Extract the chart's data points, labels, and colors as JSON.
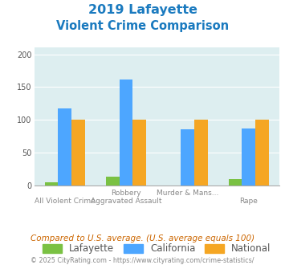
{
  "title_line1": "2019 Lafayette",
  "title_line2": "Violent Crime Comparison",
  "lafayette": [
    5,
    14,
    0,
    10
  ],
  "california": [
    118,
    162,
    86,
    87
  ],
  "national": [
    100,
    100,
    100,
    100
  ],
  "color_lafayette": "#7ac143",
  "color_california": "#4da6ff",
  "color_national": "#f5a623",
  "top_labels": [
    "",
    "Robbery",
    "Murder & Mans...",
    ""
  ],
  "bottom_labels": [
    "All Violent Crime",
    "Aggravated Assault",
    "",
    "Rape"
  ],
  "ylabel_values": [
    0,
    50,
    100,
    150,
    200
  ],
  "ylim": [
    0,
    210
  ],
  "background_color": "#ddeef0",
  "title_color": "#1a7abf",
  "footer_text": "Compared to U.S. average. (U.S. average equals 100)",
  "footer_color": "#cc6600",
  "copyright_text": "© 2025 CityRating.com - https://www.cityrating.com/crime-statistics/",
  "copyright_color": "#888888",
  "bar_width": 0.22
}
